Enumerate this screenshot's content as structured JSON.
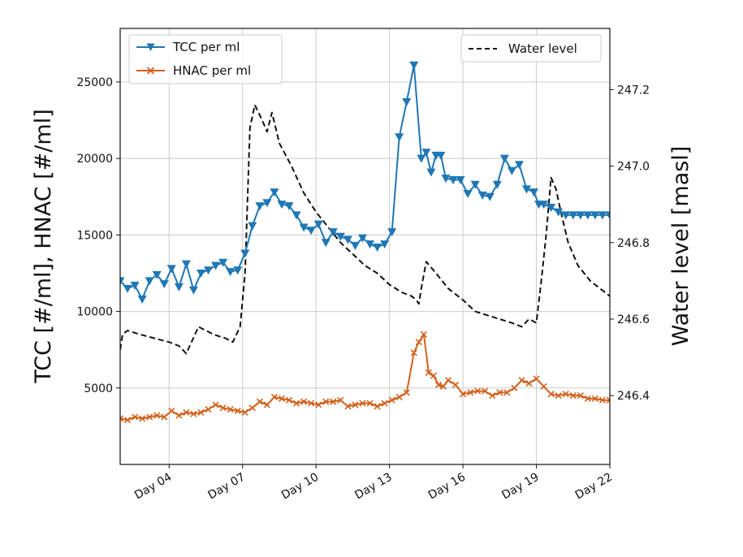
{
  "chart_data": {
    "type": "line",
    "xlabel": "",
    "ylabel": "TCC [#/ml], HNAC [#/ml]",
    "y2label": "Water level [masl]",
    "xlim": [
      2,
      22
    ],
    "ylim": [
      0,
      28500
    ],
    "y2lim": [
      246.22,
      247.36
    ],
    "grid": true,
    "x_ticks": [
      4,
      7,
      10,
      13,
      16,
      19,
      22
    ],
    "x_tick_labels": [
      "Day 04",
      "Day 07",
      "Day 10",
      "Day 13",
      "Day 16",
      "Day 19",
      "Day 22"
    ],
    "y_ticks": [
      5000,
      10000,
      15000,
      20000,
      25000
    ],
    "y_tick_labels": [
      "5000",
      "10000",
      "15000",
      "20000",
      "25000"
    ],
    "y2_ticks": [
      246.4,
      246.6,
      246.8,
      247.0,
      247.2
    ],
    "y2_tick_labels": [
      "246.4",
      "246.6",
      "246.8",
      "247.0",
      "247.2"
    ],
    "colors": {
      "tcc": "#1f77b4",
      "hnac": "#d2601a",
      "water": "#111111",
      "grid": "#cccccc"
    },
    "legend_left": {
      "placement": "top-left",
      "entries": [
        "TCC per ml",
        "HNAC per ml"
      ]
    },
    "legend_right": {
      "placement": "top-right",
      "entries": [
        "Water level"
      ]
    },
    "series": [
      {
        "name": "TCC per ml",
        "axis": "left",
        "marker": "triangle-down",
        "style": "solid",
        "x": [
          2.0,
          2.3,
          2.6,
          2.9,
          3.2,
          3.5,
          3.8,
          4.1,
          4.4,
          4.7,
          5.0,
          5.3,
          5.6,
          5.9,
          6.2,
          6.5,
          6.8,
          7.1,
          7.4,
          7.7,
          8.0,
          8.3,
          8.6,
          8.9,
          9.2,
          9.5,
          9.8,
          10.1,
          10.4,
          10.7,
          11.0,
          11.3,
          11.6,
          11.9,
          12.2,
          12.5,
          12.8,
          13.1,
          13.4,
          13.7,
          14.0,
          14.3,
          14.5,
          14.7,
          14.9,
          15.1,
          15.3,
          15.6,
          15.9,
          16.2,
          16.5,
          16.8,
          17.1,
          17.4,
          17.7,
          18.0,
          18.3,
          18.6,
          18.9,
          19.1,
          19.3,
          19.6,
          19.9,
          20.2,
          20.5,
          20.8,
          21.1,
          21.4,
          21.7,
          22.0
        ],
        "y": [
          12000,
          11500,
          11700,
          10800,
          12000,
          12400,
          11800,
          12800,
          11600,
          13100,
          11400,
          12500,
          12700,
          13000,
          13200,
          12600,
          12700,
          13800,
          15600,
          16900,
          17100,
          17800,
          17000,
          16900,
          16300,
          15500,
          15300,
          15700,
          14500,
          15200,
          14900,
          14700,
          14300,
          14800,
          14400,
          14200,
          14400,
          15200,
          21400,
          23700,
          26100,
          20000,
          20400,
          19100,
          20200,
          20200,
          18700,
          18600,
          18600,
          17700,
          18300,
          17600,
          17500,
          18300,
          20000,
          19200,
          19600,
          18000,
          17800,
          17000,
          17000,
          16800,
          16500,
          16300,
          16300,
          16300,
          16300,
          16300,
          16300,
          16300
        ]
      },
      {
        "name": "HNAC per ml",
        "axis": "left",
        "marker": "x",
        "style": "solid",
        "x": [
          2.0,
          2.3,
          2.6,
          2.9,
          3.2,
          3.5,
          3.8,
          4.1,
          4.4,
          4.7,
          5.0,
          5.3,
          5.6,
          5.9,
          6.2,
          6.5,
          6.8,
          7.1,
          7.4,
          7.7,
          8.0,
          8.3,
          8.6,
          8.9,
          9.2,
          9.5,
          9.8,
          10.1,
          10.4,
          10.7,
          11.0,
          11.3,
          11.6,
          11.9,
          12.2,
          12.5,
          12.8,
          13.1,
          13.4,
          13.7,
          14.0,
          14.2,
          14.4,
          14.6,
          14.8,
          15.0,
          15.2,
          15.4,
          15.7,
          16.0,
          16.3,
          16.6,
          16.9,
          17.2,
          17.5,
          17.8,
          18.1,
          18.4,
          18.7,
          19.0,
          19.3,
          19.6,
          19.9,
          20.2,
          20.5,
          20.8,
          21.1,
          21.4,
          21.7,
          22.0
        ],
        "y": [
          3000,
          2900,
          3100,
          3000,
          3100,
          3200,
          3100,
          3500,
          3200,
          3400,
          3300,
          3400,
          3600,
          3900,
          3700,
          3600,
          3500,
          3400,
          3700,
          4100,
          3900,
          4400,
          4300,
          4200,
          4000,
          4100,
          4000,
          3900,
          4100,
          4100,
          4200,
          3800,
          3900,
          4000,
          4000,
          3800,
          4000,
          4200,
          4400,
          4700,
          7300,
          8000,
          8500,
          6000,
          5800,
          5200,
          5100,
          5500,
          5200,
          4600,
          4700,
          4800,
          4800,
          4500,
          4700,
          4700,
          5000,
          5500,
          5300,
          5600,
          5100,
          4600,
          4500,
          4600,
          4500,
          4500,
          4300,
          4300,
          4200,
          4200
        ]
      },
      {
        "name": "Water level",
        "axis": "right",
        "marker": "none",
        "style": "dashed",
        "x": [
          2.0,
          2.1,
          2.3,
          2.8,
          3.4,
          4.0,
          4.4,
          4.7,
          5.2,
          5.8,
          6.3,
          6.6,
          6.9,
          7.1,
          7.3,
          7.5,
          7.8,
          8.0,
          8.2,
          8.5,
          9.0,
          9.5,
          10.0,
          10.5,
          11.0,
          11.5,
          12.0,
          12.5,
          13.0,
          13.5,
          13.9,
          14.1,
          14.2,
          14.3,
          14.5,
          14.9,
          15.4,
          16.0,
          16.5,
          17.0,
          17.5,
          18.0,
          18.4,
          18.7,
          19.0,
          19.2,
          19.4,
          19.6,
          19.8,
          20.0,
          20.3,
          20.7,
          21.2,
          21.6,
          22.0
        ],
        "y": [
          246.52,
          246.56,
          246.57,
          246.56,
          246.55,
          246.54,
          246.53,
          246.51,
          246.58,
          246.56,
          246.55,
          246.54,
          246.58,
          246.72,
          247.1,
          247.16,
          247.12,
          247.09,
          247.14,
          247.06,
          247.0,
          246.93,
          246.88,
          246.84,
          246.8,
          246.77,
          246.74,
          246.72,
          246.69,
          246.67,
          246.66,
          246.65,
          246.64,
          246.68,
          246.75,
          246.72,
          246.68,
          246.65,
          246.62,
          246.61,
          246.6,
          246.59,
          246.58,
          246.6,
          246.59,
          246.7,
          246.82,
          246.97,
          246.94,
          246.88,
          246.8,
          246.74,
          246.7,
          246.68,
          246.66
        ]
      }
    ]
  }
}
